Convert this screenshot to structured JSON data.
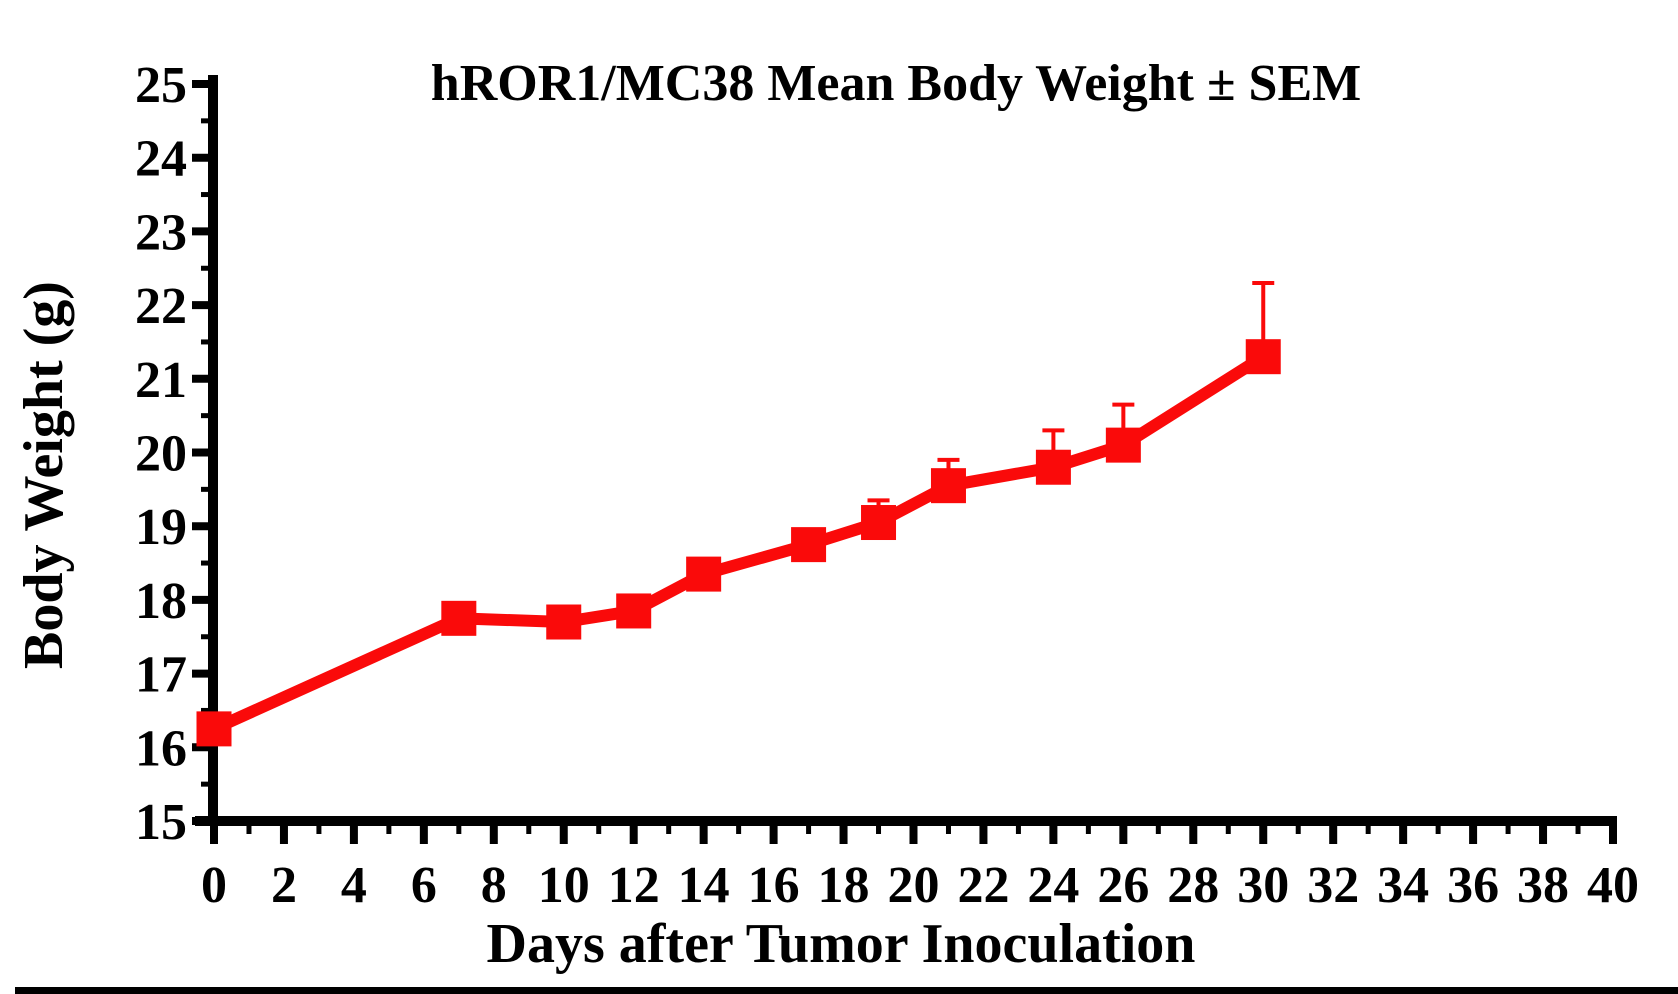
{
  "chart_data": {
    "type": "line",
    "title": "hROR1/MC38 Mean Body Weight ± SEM",
    "xlabel": "Days after Tumor Inoculation",
    "ylabel": "Body Weight (g)",
    "xlim": [
      0,
      40
    ],
    "ylim": [
      15,
      25
    ],
    "x_ticks": [
      0,
      2,
      4,
      6,
      8,
      10,
      12,
      14,
      16,
      18,
      20,
      22,
      24,
      26,
      28,
      30,
      32,
      34,
      36,
      38,
      40
    ],
    "x_minor_step": 1,
    "y_ticks": [
      15,
      16,
      17,
      18,
      19,
      20,
      21,
      22,
      23,
      24,
      25
    ],
    "y_minor_step": 0.5,
    "grid": false,
    "legend": false,
    "marker": "square",
    "error_bars": "upper SEM only",
    "axis_color": "#000000",
    "series": [
      {
        "name": "hROR1/MC38 mean body weight",
        "color": "#fa0a0a",
        "x": [
          0,
          7,
          10,
          12,
          14,
          17,
          19,
          21,
          24,
          26,
          30
        ],
        "y": [
          16.25,
          17.75,
          17.7,
          17.85,
          18.35,
          18.75,
          19.05,
          19.55,
          19.8,
          20.1,
          21.3
        ],
        "sem_upper": [
          null,
          null,
          null,
          null,
          null,
          null,
          0.3,
          0.35,
          0.5,
          0.55,
          1.0
        ]
      }
    ]
  }
}
